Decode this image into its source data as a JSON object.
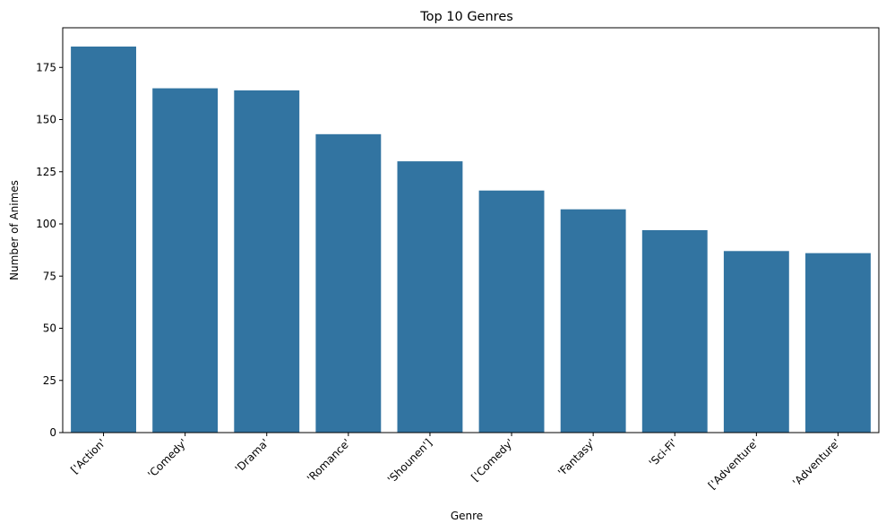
{
  "chart_data": {
    "type": "bar",
    "title": "Top 10 Genres",
    "xlabel": "Genre",
    "ylabel": "Number of Animes",
    "categories": [
      "['Action'",
      "'Comedy'",
      "'Drama'",
      "'Romance'",
      "'Shounen']",
      "['Comedy'",
      "'Fantasy'",
      "'Sci-Fi'",
      "['Adventure'",
      "'Adventure'"
    ],
    "values": [
      185,
      165,
      164,
      143,
      130,
      116,
      107,
      97,
      87,
      86
    ],
    "ylim": [
      0,
      194
    ],
    "yticks": [
      0,
      25,
      50,
      75,
      100,
      125,
      150,
      175
    ],
    "bar_color": "#3274a1",
    "grid": false,
    "legend": "none"
  }
}
